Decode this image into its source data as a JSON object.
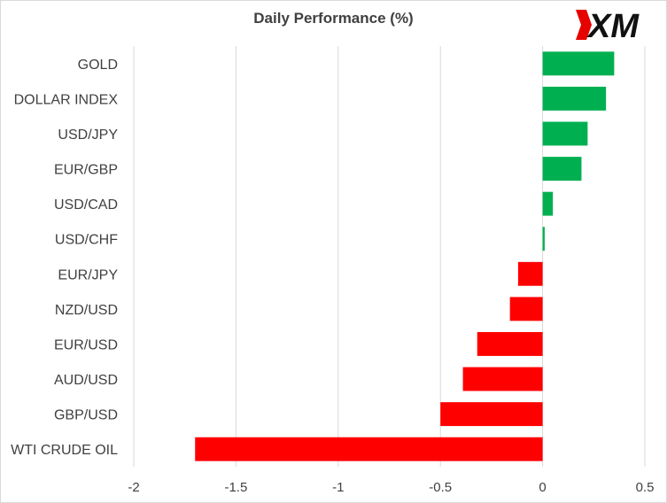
{
  "brand": {
    "logo_text": "XM"
  },
  "chart_data": {
    "type": "bar",
    "orientation": "horizontal",
    "title": "Daily Performance  (%)",
    "categories": [
      "GOLD",
      "DOLLAR INDEX",
      "USD/JPY",
      "EUR/GBP",
      "USD/CAD",
      "USD/CHF",
      "EUR/JPY",
      "NZD/USD",
      "EUR/USD",
      "AUD/USD",
      "GBP/USD",
      "WTI CRUDE OIL"
    ],
    "values": [
      0.35,
      0.31,
      0.22,
      0.19,
      0.05,
      0.01,
      -0.12,
      -0.16,
      -0.32,
      -0.39,
      -0.5,
      -1.7
    ],
    "xlim": [
      -2,
      0.5
    ],
    "xticks": [
      -2,
      -1.5,
      -1,
      -0.5,
      0,
      0.5
    ],
    "xtick_labels": [
      "-2",
      "-1.5",
      "-1",
      "-0.5",
      "0",
      "0.5"
    ],
    "grid": "vertical",
    "legend": "none",
    "colors": {
      "positive": "#00b050",
      "negative": "#ff0000",
      "grid": "#d9d9d9",
      "text": "#404040"
    }
  }
}
